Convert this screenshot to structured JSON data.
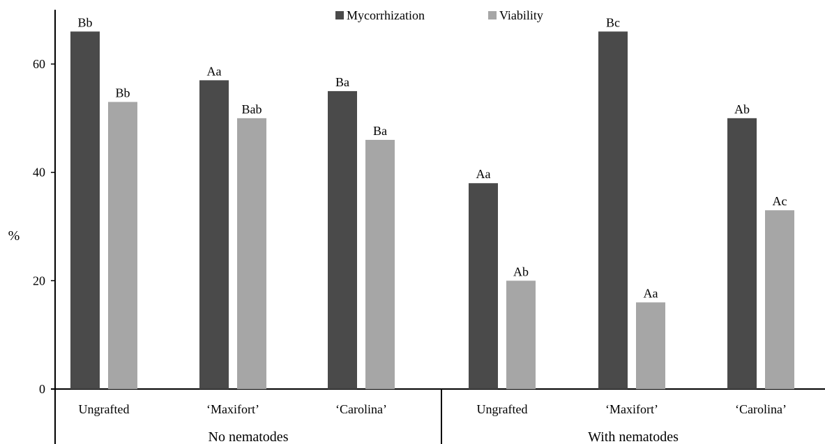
{
  "chart_data": {
    "type": "bar",
    "ylabel": "%",
    "ylim": [
      0,
      70
    ],
    "yticks": [
      0,
      20,
      40,
      60
    ],
    "ytick_labels": [
      "0",
      "20",
      "40",
      "60"
    ],
    "grid": false,
    "legend_position": "top-center",
    "groups": [
      {
        "label": "No nematodes",
        "categories": [
          "Ungrafted",
          "‘Maxifort’",
          "‘Carolina’"
        ]
      },
      {
        "label": "With nematodes",
        "categories": [
          "Ungrafted",
          "‘Maxifort’",
          "‘Carolina’"
        ]
      }
    ],
    "series": [
      {
        "name": "Mycorrhization",
        "color": "#4a4a4a",
        "values": [
          66,
          57,
          55,
          38,
          66,
          50
        ],
        "labels": [
          "Bb",
          "Aa",
          "Ba",
          "Aa",
          "Bc",
          "Ab"
        ]
      },
      {
        "name": "Viability",
        "color": "#a6a6a6",
        "values": [
          53,
          50,
          46,
          20,
          16,
          33
        ],
        "labels": [
          "Bb",
          "Bab",
          "Ba",
          "Ab",
          "Aa",
          "Ac"
        ]
      }
    ]
  }
}
